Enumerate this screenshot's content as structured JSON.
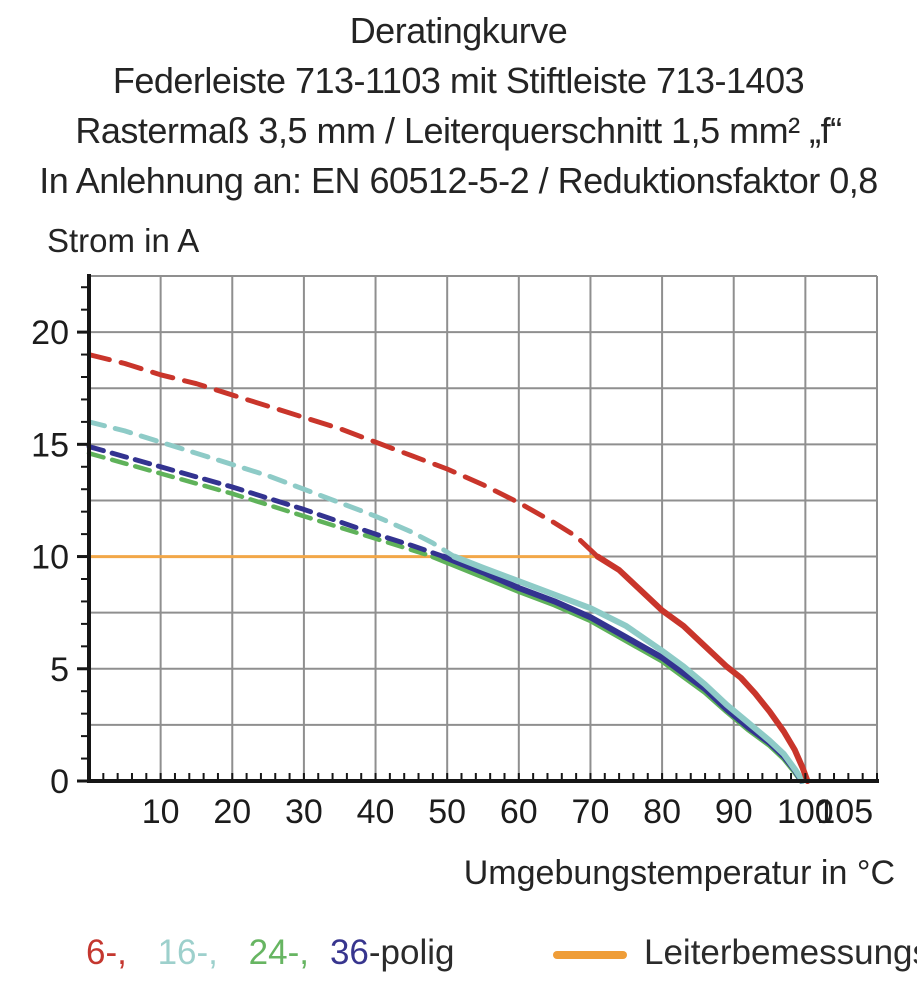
{
  "title": {
    "line1": "Deratingkurve",
    "line2": "Federleiste 713-1103 mit Stiftleiste 713-1403",
    "line3": "Rastermaß 3,5 mm / Leiterquerschnitt 1,5 mm² „f“",
    "line4": "In Anlehnung an: EN 60512-5-2 / Reduktionsfaktor 0,8"
  },
  "y_axis_label": "Strom in A",
  "x_axis_label": "Umgebungstemperatur in °C",
  "legend": {
    "pole_items": [
      {
        "label": "6-,",
        "color": "#c4372f"
      },
      {
        "label": "16-,",
        "color": "#9dd0cc"
      },
      {
        "label": "24-,",
        "color": "#67b562"
      },
      {
        "label": "36",
        "color": "#37358e"
      }
    ],
    "pole_suffix": "-polig",
    "rated_current_label": "Leiterbemessungsstrom",
    "rated_current_color": "#ef9d38"
  },
  "chart_data": {
    "type": "line",
    "title": "Deratingkurve",
    "xlabel": "Umgebungstemperatur in °C",
    "ylabel": "Strom in A",
    "xlim": [
      0,
      110
    ],
    "ylim": [
      0,
      22.5
    ],
    "grid": true,
    "x_grid_step": 10,
    "y_grid_step": 2.5,
    "x_minor_tick_step": 2,
    "y_minor_tick_step": 1,
    "grid_color": "#8f8f8f",
    "axis_color": "#161616",
    "tick_label_color": "#1c1c1c",
    "x_ticks": [
      {
        "value": 10,
        "label": "10"
      },
      {
        "value": 20,
        "label": "20"
      },
      {
        "value": 30,
        "label": "30"
      },
      {
        "value": 40,
        "label": "40"
      },
      {
        "value": 50,
        "label": "50"
      },
      {
        "value": 60,
        "label": "60"
      },
      {
        "value": 70,
        "label": "70"
      },
      {
        "value": 80,
        "label": "80"
      },
      {
        "value": 90,
        "label": "90"
      },
      {
        "value": 100,
        "label": "100"
      },
      {
        "value": 105.5,
        "label": "105"
      }
    ],
    "y_ticks": [
      {
        "value": 0,
        "label": "0"
      },
      {
        "value": 5,
        "label": "5"
      },
      {
        "value": 10,
        "label": "10"
      },
      {
        "value": 15,
        "label": "15"
      },
      {
        "value": 20,
        "label": "20"
      }
    ],
    "series": [
      {
        "name": "Leiterbemessungsstrom",
        "color": "#f2a748",
        "width": 3,
        "solid_points": [
          [
            0,
            10
          ],
          [
            71,
            10
          ]
        ]
      },
      {
        "name": "24-polig",
        "color": "#5fb25a",
        "width": 5.5,
        "dash": [
          15,
          9
        ],
        "dashed_points": [
          [
            0,
            14.6
          ],
          [
            5,
            14.15
          ],
          [
            10,
            13.7
          ],
          [
            15,
            13.25
          ],
          [
            20,
            12.8
          ],
          [
            25,
            12.3
          ],
          [
            30,
            11.8
          ],
          [
            35,
            11.3
          ],
          [
            40,
            10.8
          ],
          [
            44,
            10.4
          ],
          [
            48,
            10
          ]
        ],
        "solid_points": [
          [
            48,
            10
          ],
          [
            55,
            9.1
          ],
          [
            60,
            8.45
          ],
          [
            65,
            7.85
          ],
          [
            70,
            7.15
          ],
          [
            75,
            6.25
          ],
          [
            80,
            5.35
          ],
          [
            83,
            4.65
          ],
          [
            86,
            3.95
          ],
          [
            89,
            3.1
          ],
          [
            92,
            2.3
          ],
          [
            95,
            1.6
          ],
          [
            97,
            1.0
          ],
          [
            98.4,
            0.45
          ],
          [
            99.4,
            0
          ]
        ]
      },
      {
        "name": "36-polig",
        "color": "#333390",
        "width": 6,
        "dash": [
          15,
          9
        ],
        "dashed_points": [
          [
            0,
            14.9
          ],
          [
            5,
            14.45
          ],
          [
            10,
            14.0
          ],
          [
            15,
            13.55
          ],
          [
            20,
            13.1
          ],
          [
            25,
            12.6
          ],
          [
            30,
            12.1
          ],
          [
            35,
            11.55
          ],
          [
            40,
            11.0
          ],
          [
            45,
            10.5
          ],
          [
            49.5,
            10
          ]
        ],
        "solid_points": [
          [
            49.5,
            10
          ],
          [
            55,
            9.3
          ],
          [
            60,
            8.6
          ],
          [
            65,
            8.0
          ],
          [
            70,
            7.3
          ],
          [
            75,
            6.4
          ],
          [
            80,
            5.5
          ],
          [
            83,
            4.8
          ],
          [
            86,
            4.1
          ],
          [
            89,
            3.2
          ],
          [
            92,
            2.4
          ],
          [
            95,
            1.7
          ],
          [
            97,
            1.1
          ],
          [
            98.5,
            0.5
          ],
          [
            99.5,
            0
          ]
        ]
      },
      {
        "name": "16-polig",
        "color": "#8ecbc7",
        "width": 6,
        "dash": [
          16,
          11
        ],
        "dashed_points": [
          [
            0,
            16.0
          ],
          [
            5,
            15.6
          ],
          [
            10,
            15.1
          ],
          [
            15,
            14.6
          ],
          [
            20,
            14.1
          ],
          [
            25,
            13.6
          ],
          [
            30,
            13.0
          ],
          [
            35,
            12.4
          ],
          [
            40,
            11.8
          ],
          [
            45,
            11.1
          ],
          [
            48,
            10.6
          ],
          [
            51,
            10
          ]
        ],
        "solid_points": [
          [
            51,
            10
          ],
          [
            55,
            9.5
          ],
          [
            60,
            8.9
          ],
          [
            65,
            8.3
          ],
          [
            70,
            7.7
          ],
          [
            75,
            6.9
          ],
          [
            80,
            5.8
          ],
          [
            83,
            5.1
          ],
          [
            86,
            4.3
          ],
          [
            89,
            3.4
          ],
          [
            92,
            2.6
          ],
          [
            95,
            1.8
          ],
          [
            97,
            1.2
          ],
          [
            98.6,
            0.5
          ],
          [
            99.6,
            0
          ]
        ]
      },
      {
        "name": "6-polig",
        "color": "#c9352b",
        "width": 6,
        "dash": [
          21,
          12
        ],
        "dashed_points": [
          [
            0,
            19.0
          ],
          [
            5,
            18.6
          ],
          [
            10,
            18.1
          ],
          [
            15,
            17.7
          ],
          [
            20,
            17.2
          ],
          [
            25,
            16.7
          ],
          [
            30,
            16.2
          ],
          [
            35,
            15.7
          ],
          [
            40,
            15.1
          ],
          [
            45,
            14.5
          ],
          [
            50,
            13.9
          ],
          [
            55,
            13.2
          ],
          [
            60,
            12.4
          ],
          [
            65,
            11.5
          ],
          [
            68,
            10.9
          ],
          [
            71,
            10
          ]
        ],
        "solid_points": [
          [
            71,
            10
          ],
          [
            74,
            9.4
          ],
          [
            77,
            8.5
          ],
          [
            80,
            7.6
          ],
          [
            83,
            6.9
          ],
          [
            86,
            6.0
          ],
          [
            89,
            5.1
          ],
          [
            91,
            4.6
          ],
          [
            93,
            3.9
          ],
          [
            95,
            3.1
          ],
          [
            97,
            2.2
          ],
          [
            98.5,
            1.4
          ],
          [
            99.6,
            0.6
          ],
          [
            100.3,
            0
          ]
        ]
      }
    ]
  }
}
